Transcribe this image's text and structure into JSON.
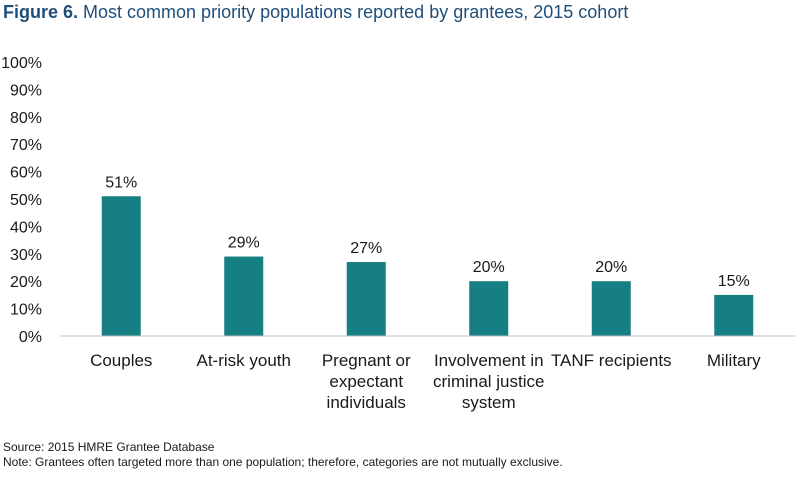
{
  "figure": {
    "label": "Figure 6.",
    "title": "Most common priority populations reported by grantees, 2015 cohort"
  },
  "chart_data": {
    "type": "bar",
    "categories": [
      [
        "Couples"
      ],
      [
        "At-risk youth"
      ],
      [
        "Pregnant or",
        "expectant",
        "individuals"
      ],
      [
        "Involvement in",
        "criminal justice",
        "system"
      ],
      [
        "TANF recipients"
      ],
      [
        "Military"
      ]
    ],
    "values": [
      51,
      29,
      27,
      20,
      20,
      15
    ],
    "data_labels": [
      "51%",
      "29%",
      "27%",
      "20%",
      "20%",
      "15%"
    ],
    "ylim": [
      0,
      100
    ],
    "yticks": [
      0,
      10,
      20,
      30,
      40,
      50,
      60,
      70,
      80,
      90,
      100
    ],
    "ytick_labels": [
      "0%",
      "10%",
      "20%",
      "30%",
      "40%",
      "50%",
      "60%",
      "70%",
      "80%",
      "90%",
      "100%"
    ],
    "bar_color": "#167f84",
    "grid": false
  },
  "footnotes": {
    "source": "Source: 2015 HMRE Grantee Database",
    "note": "Note: Grantees often targeted more than one population; therefore, categories are not mutually exclusive."
  }
}
